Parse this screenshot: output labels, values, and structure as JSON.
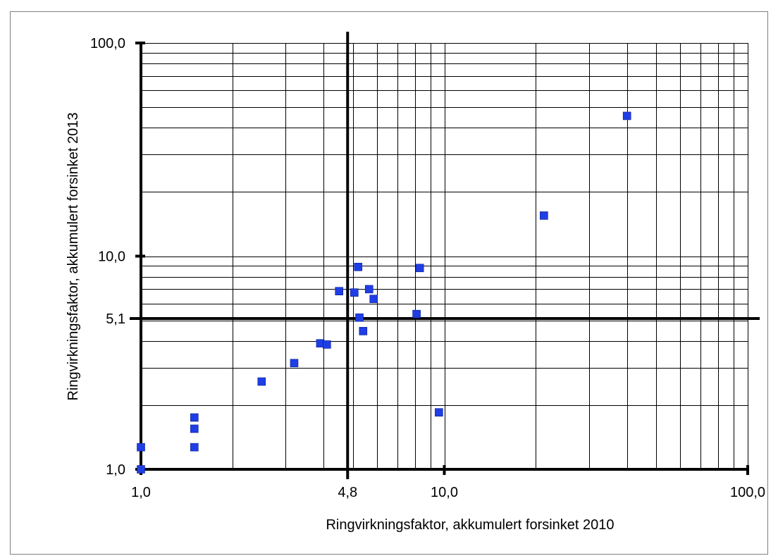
{
  "chart_data": {
    "type": "scatter",
    "title": "",
    "xlabel": "Ringvirkningsfaktor, akkumulert forsinket 2010",
    "ylabel": "Ringvirkningsfaktor, akkumulert forsinket 2013",
    "x_scale": "log",
    "y_scale": "log",
    "xlim": [
      1,
      100
    ],
    "ylim": [
      1,
      100
    ],
    "grid": true,
    "legend": "none",
    "x_tick_labels": [
      {
        "value": 1,
        "label": "1,0"
      },
      {
        "value": 4.8,
        "label": "4,8"
      },
      {
        "value": 10,
        "label": "10,0"
      },
      {
        "value": 100,
        "label": "100,0"
      }
    ],
    "y_tick_labels": [
      {
        "value": 1,
        "label": "1,0"
      },
      {
        "value": 5.1,
        "label": "5,1"
      },
      {
        "value": 10,
        "label": "10,0"
      },
      {
        "value": 100,
        "label": "100,0"
      }
    ],
    "reference_lines": {
      "x": 4.8,
      "y": 5.1
    },
    "marker_color": "#1f3ee6",
    "points": [
      {
        "x": 1.0,
        "y": 1.0
      },
      {
        "x": 1.0,
        "y": 1.27
      },
      {
        "x": 1.5,
        "y": 1.55
      },
      {
        "x": 1.5,
        "y": 1.75
      },
      {
        "x": 1.5,
        "y": 1.27
      },
      {
        "x": 2.5,
        "y": 2.58
      },
      {
        "x": 3.2,
        "y": 3.15
      },
      {
        "x": 3.9,
        "y": 3.9
      },
      {
        "x": 4.1,
        "y": 3.85
      },
      {
        "x": 4.5,
        "y": 6.85
      },
      {
        "x": 5.05,
        "y": 6.75
      },
      {
        "x": 5.2,
        "y": 8.9
      },
      {
        "x": 5.25,
        "y": 5.15
      },
      {
        "x": 5.4,
        "y": 4.45
      },
      {
        "x": 5.65,
        "y": 7.0
      },
      {
        "x": 5.85,
        "y": 6.3
      },
      {
        "x": 8.1,
        "y": 5.35
      },
      {
        "x": 8.3,
        "y": 8.8
      },
      {
        "x": 9.6,
        "y": 1.85
      },
      {
        "x": 21.3,
        "y": 15.5
      },
      {
        "x": 40.0,
        "y": 45.5
      }
    ]
  }
}
